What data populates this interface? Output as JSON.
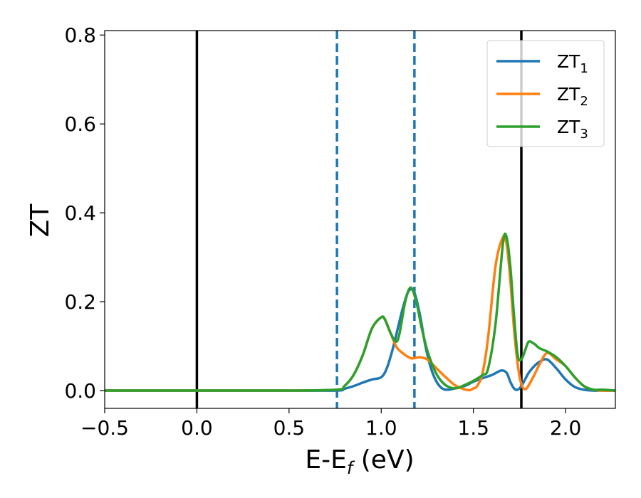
{
  "chart_data": {
    "type": "line",
    "xlabel": {
      "main": "E-E",
      "sub": "f",
      "tail": " (eV)"
    },
    "ylabel": "ZT",
    "xlim": [
      -0.5,
      2.27
    ],
    "ylim": [
      -0.04,
      0.81
    ],
    "x_ticks": [
      -0.5,
      0.0,
      0.5,
      1.0,
      1.5,
      2.0
    ],
    "x_tick_labels": [
      "−0.5",
      "0.0",
      "0.5",
      "1.0",
      "1.5",
      "2.0"
    ],
    "y_ticks": [
      0.0,
      0.2,
      0.4,
      0.6,
      0.8
    ],
    "y_tick_labels": [
      "0.0",
      "0.2",
      "0.4",
      "0.6",
      "0.8"
    ],
    "legend_position": "top-right",
    "vertical_lines": [
      {
        "x": 0.0,
        "style": "solid",
        "color": "#000000"
      },
      {
        "x": 1.76,
        "style": "solid",
        "color": "#000000"
      },
      {
        "x": 0.76,
        "style": "dashed",
        "color": "#1f77b4"
      },
      {
        "x": 1.18,
        "style": "dashed",
        "color": "#1f77b4"
      }
    ],
    "series": [
      {
        "name": "ZT",
        "name_sub": "1",
        "color": "#1f77b4",
        "x": [
          -0.5,
          0.0,
          0.5,
          0.76,
          0.8,
          0.85,
          0.9,
          0.95,
          1.0,
          1.03,
          1.06,
          1.09,
          1.12,
          1.15,
          1.18,
          1.21,
          1.24,
          1.27,
          1.3,
          1.33,
          1.36,
          1.4,
          1.45,
          1.5,
          1.55,
          1.6,
          1.65,
          1.68,
          1.7,
          1.72,
          1.74,
          1.76,
          1.78,
          1.8,
          1.83,
          1.86,
          1.9,
          1.95,
          2.0,
          2.05,
          2.1,
          2.15,
          2.2,
          2.27
        ],
        "y": [
          0.0,
          0.0,
          0.0,
          0.0,
          0.004,
          0.01,
          0.018,
          0.025,
          0.03,
          0.05,
          0.09,
          0.14,
          0.19,
          0.225,
          0.22,
          0.17,
          0.1,
          0.05,
          0.02,
          0.005,
          0.002,
          0.005,
          0.01,
          0.02,
          0.028,
          0.035,
          0.045,
          0.04,
          0.02,
          0.005,
          0.002,
          0.01,
          0.025,
          0.04,
          0.055,
          0.065,
          0.07,
          0.05,
          0.025,
          0.008,
          0.002,
          0.0,
          0.0,
          0.0
        ]
      },
      {
        "name": "ZT",
        "name_sub": "2",
        "color": "#ff7f0e",
        "x": [
          -0.5,
          0.0,
          0.5,
          0.76,
          0.8,
          0.85,
          0.9,
          0.95,
          1.0,
          1.02,
          1.05,
          1.08,
          1.1,
          1.13,
          1.16,
          1.18,
          1.21,
          1.25,
          1.3,
          1.35,
          1.4,
          1.45,
          1.48,
          1.5,
          1.52,
          1.55,
          1.58,
          1.62,
          1.66,
          1.68,
          1.7,
          1.72,
          1.74,
          1.76,
          1.78,
          1.8,
          1.83,
          1.86,
          1.9,
          1.95,
          2.0,
          2.05,
          2.1,
          2.15,
          2.2,
          2.27
        ],
        "y": [
          0.0,
          0.0,
          0.0,
          0.002,
          0.01,
          0.035,
          0.08,
          0.14,
          0.165,
          0.16,
          0.13,
          0.1,
          0.09,
          0.08,
          0.073,
          0.073,
          0.075,
          0.07,
          0.05,
          0.03,
          0.012,
          0.003,
          0.001,
          0.005,
          0.01,
          0.04,
          0.12,
          0.28,
          0.345,
          0.33,
          0.25,
          0.14,
          0.06,
          0.015,
          0.003,
          0.012,
          0.035,
          0.06,
          0.085,
          0.07,
          0.055,
          0.03,
          0.01,
          0.002,
          0.0,
          0.0
        ]
      },
      {
        "name": "ZT",
        "name_sub": "3",
        "color": "#2ca02c",
        "x": [
          -0.5,
          0.0,
          0.5,
          0.76,
          0.8,
          0.85,
          0.9,
          0.95,
          1.0,
          1.02,
          1.05,
          1.08,
          1.1,
          1.13,
          1.16,
          1.19,
          1.22,
          1.25,
          1.28,
          1.31,
          1.35,
          1.4,
          1.45,
          1.5,
          1.55,
          1.58,
          1.62,
          1.66,
          1.68,
          1.7,
          1.72,
          1.74,
          1.76,
          1.78,
          1.8,
          1.83,
          1.86,
          1.9,
          1.95,
          2.0,
          2.05,
          2.1,
          2.15,
          2.2,
          2.27
        ],
        "y": [
          0.0,
          0.0,
          0.0,
          0.002,
          0.01,
          0.035,
          0.08,
          0.14,
          0.165,
          0.16,
          0.13,
          0.11,
          0.13,
          0.2,
          0.232,
          0.2,
          0.14,
          0.09,
          0.055,
          0.03,
          0.012,
          0.005,
          0.012,
          0.022,
          0.035,
          0.05,
          0.15,
          0.33,
          0.345,
          0.28,
          0.17,
          0.08,
          0.07,
          0.09,
          0.11,
          0.105,
          0.095,
          0.088,
          0.075,
          0.055,
          0.03,
          0.01,
          0.002,
          0.002,
          0.0
        ]
      }
    ]
  }
}
